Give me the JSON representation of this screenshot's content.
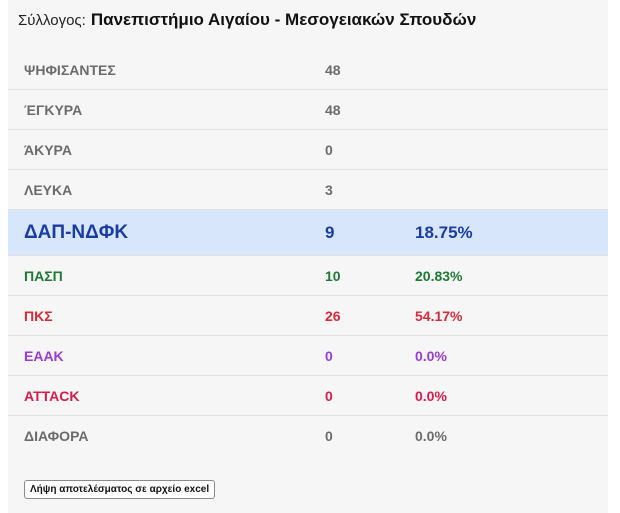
{
  "header": {
    "label": "Σύλλογος:",
    "name": "Πανεπιστήμιο Αιγαίου - Μεσογειακών Σπουδών"
  },
  "stats": [
    {
      "label": "ΨΗΦΙΣΑΝΤΕΣ",
      "value": "48"
    },
    {
      "label": "ΈΓΚΥΡΑ",
      "value": "48"
    },
    {
      "label": "ΆΚΥΡΑ",
      "value": "0"
    },
    {
      "label": "ΛΕΥΚΑ",
      "value": "3"
    }
  ],
  "results": [
    {
      "name": "ΔΑΠ-ΝΔΦΚ",
      "votes": "9",
      "percent": "18.75%",
      "color": "#1a3da3"
    },
    {
      "name": "ΠΑΣΠ",
      "votes": "10",
      "percent": "20.83%",
      "color": "#1c7a34"
    },
    {
      "name": "ΠΚΣ",
      "votes": "26",
      "percent": "54.17%",
      "color": "#d62a3a"
    },
    {
      "name": "ΕΑΑΚ",
      "votes": "0",
      "percent": "0.0%",
      "color": "#9a3bd6"
    },
    {
      "name": "ATTACK",
      "votes": "0",
      "percent": "0.0%",
      "color": "#d81b4a"
    },
    {
      "name": "ΔΙΑΦΟΡΑ",
      "votes": "0",
      "percent": "0.0%",
      "color": "#6b6b6b"
    }
  ],
  "download_button": "Λήψη αποτελέσματος σε αρχείο excel"
}
